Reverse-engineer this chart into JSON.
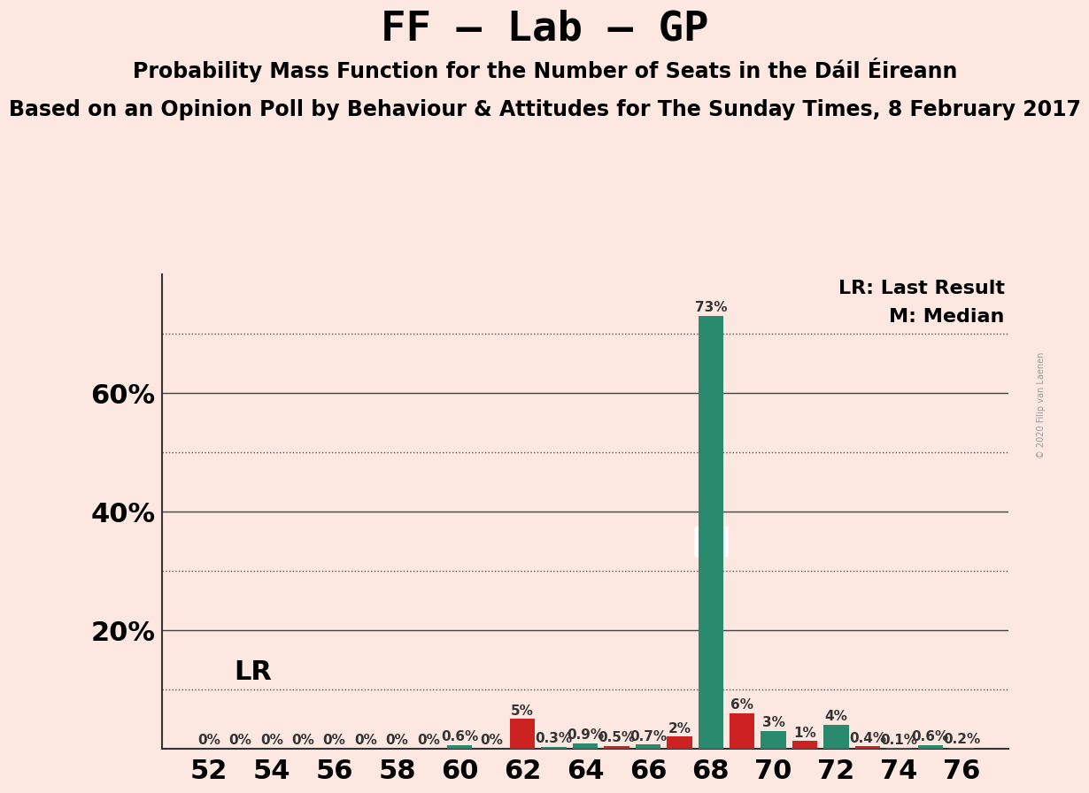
{
  "title": "FF – Lab – GP",
  "subtitle1": "Probability Mass Function for the Number of Seats in the Dáil Éireann",
  "subtitle2": "Based on an Opinion Poll by Behaviour & Attitudes for The Sunday Times, 8 February 2017",
  "watermark": "© 2020 Filip van Laenen",
  "background_color": "#fce8e0",
  "lr_label": "LR: Last Result",
  "m_label": "M: Median",
  "lr_value": 0.1,
  "median_seat": 68,
  "seats": [
    52,
    53,
    54,
    55,
    56,
    57,
    58,
    59,
    60,
    61,
    62,
    63,
    64,
    65,
    66,
    67,
    68,
    69,
    70,
    71,
    72,
    73,
    74,
    75,
    76
  ],
  "values": [
    0.0,
    0.0,
    0.0,
    0.0,
    0.0,
    0.0,
    0.0,
    0.0,
    0.006,
    0.0,
    0.05,
    0.003,
    0.009,
    0.005,
    0.007,
    0.02,
    0.73,
    0.06,
    0.03,
    0.013,
    0.04,
    0.004,
    0.001,
    0.006,
    0.002
  ],
  "colors": [
    "#cc2222",
    "#cc2222",
    "#cc2222",
    "#cc2222",
    "#cc2222",
    "#cc2222",
    "#cc2222",
    "#cc2222",
    "#2a8a6e",
    "#cc2222",
    "#cc2222",
    "#2a8a6e",
    "#2a8a6e",
    "#cc2222",
    "#2a8a6e",
    "#cc2222",
    "#2a8a6e",
    "#cc2222",
    "#2a8a6e",
    "#cc2222",
    "#2a8a6e",
    "#cc2222",
    "#cc2222",
    "#2a8a6e",
    "#cc2222"
  ],
  "ylim": [
    0,
    0.8
  ],
  "solid_gridlines": [
    0.2,
    0.4,
    0.6
  ],
  "dotted_gridlines": [
    0.1,
    0.3,
    0.5,
    0.7
  ],
  "ytick_positions": [
    0.2,
    0.4,
    0.6
  ],
  "ytick_labels": [
    "20%",
    "40%",
    "60%"
  ],
  "title_fontsize": 34,
  "subtitle1_fontsize": 17,
  "subtitle2_fontsize": 17,
  "axis_tick_fontsize": 22,
  "bar_label_fontsize": 11,
  "lr_fontsize": 22,
  "legend_fontsize": 16,
  "m_fontsize": 34
}
